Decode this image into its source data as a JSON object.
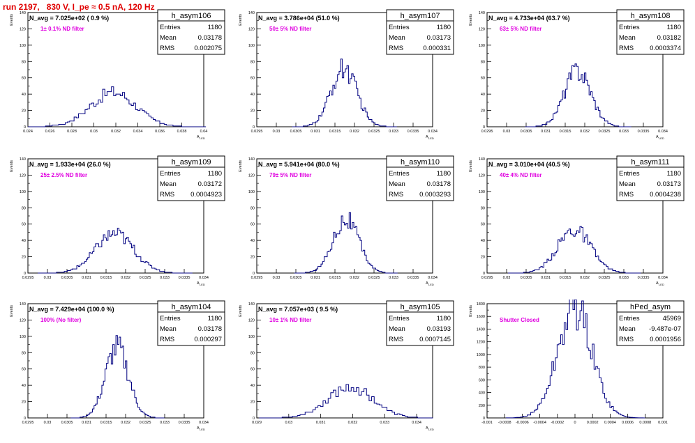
{
  "page_title": "run 2197,   830 V, I_pe ≈ 0.5 nA, 120 Hz",
  "colors": {
    "histogram_line": "#000080",
    "filter_text": "#e000e0",
    "title_text": "#e00000",
    "frame": "#000000"
  },
  "chart_data": [
    {
      "type": "histogram",
      "hist_name": "h_asym106",
      "n_avg": "N_avg = 7.025e+02 ( 0.9 %)",
      "filter_label": "1± 0.1% ND filter",
      "stats": {
        "entries_label": "Entries",
        "entries": "1180",
        "mean_label": "Mean",
        "mean": "0.03178",
        "rms_label": "RMS",
        "rms": "0.002075"
      },
      "ylabel": "Events",
      "xlabel": "A",
      "xlabel_sub": "LED",
      "xlim": [
        0.024,
        0.04
      ],
      "ylim": [
        0,
        140
      ],
      "xticks": [
        "0.024",
        "0.026",
        "0.028",
        "0.03",
        "0.032",
        "0.034",
        "0.036",
        "0.038",
        "0.04"
      ],
      "yticks": [
        "0",
        "20",
        "40",
        "60",
        "80",
        "100",
        "120",
        "140"
      ],
      "peak": 42,
      "bin_width": 0.0002
    },
    {
      "type": "histogram",
      "hist_name": "h_asym107",
      "n_avg": "N_avg = 3.786e+04 (51.0 %)",
      "filter_label": "50± 5% ND filter",
      "stats": {
        "entries_label": "Entries",
        "entries": "1180",
        "mean_label": "Mean",
        "mean": "0.03173",
        "rms_label": "RMS",
        "rms": "0.000331"
      },
      "ylabel": "Events",
      "xlabel": "A",
      "xlabel_sub": "LED",
      "xlim": [
        0.0295,
        0.034
      ],
      "ylim": [
        0,
        140
      ],
      "xticks": [
        "0.0295",
        "0.03",
        "0.0305",
        "0.031",
        "0.0315",
        "0.032",
        "0.0325",
        "0.033",
        "0.0335",
        "0.034"
      ],
      "yticks": [
        "0",
        "20",
        "40",
        "60",
        "80",
        "100",
        "120",
        "140"
      ],
      "peak": 71,
      "bin_width": 4e-05
    },
    {
      "type": "histogram",
      "hist_name": "h_asym108",
      "n_avg": "N_avg = 4.733e+04 (63.7 %)",
      "filter_label": "63± 5% ND filter",
      "stats": {
        "entries_label": "Entries",
        "entries": "1180",
        "mean_label": "Mean",
        "mean": "0.03182",
        "rms_label": "RMS",
        "rms": "0.0003374"
      },
      "ylabel": "Events",
      "xlabel": "A",
      "xlabel_sub": "LED",
      "xlim": [
        0.0295,
        0.034
      ],
      "ylim": [
        0,
        140
      ],
      "xticks": [
        "0.0295",
        "0.03",
        "0.0305",
        "0.031",
        "0.0315",
        "0.032",
        "0.0325",
        "0.033",
        "0.0335",
        "0.034"
      ],
      "yticks": [
        "0",
        "20",
        "40",
        "60",
        "80",
        "100",
        "120",
        "140"
      ],
      "peak": 69,
      "bin_width": 4e-05
    },
    {
      "type": "histogram",
      "hist_name": "h_asym109",
      "n_avg": "N_avg = 1.933e+04 (26.0 %)",
      "filter_label": "25± 2.5% ND filter",
      "stats": {
        "entries_label": "Entries",
        "entries": "1180",
        "mean_label": "Mean",
        "mean": "0.03172",
        "rms_label": "RMS",
        "rms": "0.0004923"
      },
      "ylabel": "Events",
      "xlabel": "A",
      "xlabel_sub": "LED",
      "xlim": [
        0.0295,
        0.034
      ],
      "ylim": [
        0,
        140
      ],
      "xticks": [
        "0.0295",
        "0.03",
        "0.0305",
        "0.031",
        "0.0315",
        "0.032",
        "0.0325",
        "0.033",
        "0.0335",
        "0.034"
      ],
      "yticks": [
        "0",
        "20",
        "40",
        "60",
        "80",
        "100",
        "120",
        "140"
      ],
      "peak": 48,
      "bin_width": 4e-05
    },
    {
      "type": "histogram",
      "hist_name": "h_asym110",
      "n_avg": "N_avg = 5.941e+04 (80.0 %)",
      "filter_label": "79± 5% ND filter",
      "stats": {
        "entries_label": "Entries",
        "entries": "1180",
        "mean_label": "Mean",
        "mean": "0.03178",
        "rms_label": "RMS",
        "rms": "0.0003293"
      },
      "ylabel": "Events",
      "xlabel": "A",
      "xlabel_sub": "LED",
      "xlim": [
        0.0295,
        0.034
      ],
      "ylim": [
        0,
        140
      ],
      "xticks": [
        "0.0295",
        "0.03",
        "0.0305",
        "0.031",
        "0.0315",
        "0.032",
        "0.0325",
        "0.033",
        "0.0335",
        "0.034"
      ],
      "yticks": [
        "0",
        "20",
        "40",
        "60",
        "80",
        "100",
        "120",
        "140"
      ],
      "peak": 66,
      "bin_width": 4e-05
    },
    {
      "type": "histogram",
      "hist_name": "h_asym111",
      "n_avg": "N_avg = 3.010e+04 (40.5 %)",
      "filter_label": "40± 4% ND filter",
      "stats": {
        "entries_label": "Entries",
        "entries": "1180",
        "mean_label": "Mean",
        "mean": "0.03173",
        "rms_label": "RMS",
        "rms": "0.0004238"
      },
      "ylabel": "Events",
      "xlabel": "A",
      "xlabel_sub": "LED",
      "xlim": [
        0.0295,
        0.034
      ],
      "ylim": [
        0,
        140
      ],
      "xticks": [
        "0.0295",
        "0.03",
        "0.0305",
        "0.031",
        "0.0315",
        "0.032",
        "0.0325",
        "0.033",
        "0.0335",
        "0.034"
      ],
      "yticks": [
        "0",
        "20",
        "40",
        "60",
        "80",
        "100",
        "120",
        "140"
      ],
      "peak": 53,
      "bin_width": 4e-05
    },
    {
      "type": "histogram",
      "hist_name": "h_asym104",
      "n_avg": "N_avg = 7.429e+04 (100.0 %)",
      "filter_label": "100% (No filter)",
      "stats": {
        "entries_label": "Entries",
        "entries": "1180",
        "mean_label": "Mean",
        "mean": "0.03178",
        "rms_label": "RMS",
        "rms": "0.000297"
      },
      "ylabel": "Events",
      "xlabel": "A",
      "xlabel_sub": "LED",
      "xlim": [
        0.0295,
        0.034
      ],
      "ylim": [
        0,
        140
      ],
      "xticks": [
        "0.0295",
        "0.03",
        "0.0305",
        "0.031",
        "0.0315",
        "0.032",
        "0.0325",
        "0.033",
        "0.0335",
        "0.034"
      ],
      "yticks": [
        "0",
        "20",
        "40",
        "60",
        "80",
        "100",
        "120",
        "140"
      ],
      "peak": 86,
      "bin_width": 4e-05
    },
    {
      "type": "histogram",
      "hist_name": "h_asym105",
      "n_avg": "N_avg = 7.057e+03 ( 9.5 %)",
      "filter_label": "10± 1% ND filter",
      "stats": {
        "entries_label": "Entries",
        "entries": "1180",
        "mean_label": "Mean",
        "mean": "0.03193",
        "rms_label": "RMS",
        "rms": "0.0007145"
      },
      "ylabel": "Events",
      "xlabel": "A",
      "xlabel_sub": "LED",
      "xlim": [
        0.029,
        0.0345
      ],
      "ylim": [
        0,
        140
      ],
      "xticks": [
        "0.029",
        "0.03",
        "0.031",
        "0.032",
        "0.033",
        "0.034"
      ],
      "yticks": [
        "0",
        "20",
        "40",
        "60",
        "80",
        "100",
        "120",
        "140"
      ],
      "peak": 38,
      "bin_width": 8e-05
    },
    {
      "type": "histogram",
      "hist_name": "hPed_asym",
      "n_avg": "",
      "filter_label": "Shutter Closed",
      "stats": {
        "entries_label": "Entries",
        "entries": "45969",
        "mean_label": "Mean",
        "mean": "-9.487e-07",
        "rms_label": "RMS",
        "rms": "0.0001956"
      },
      "ylabel": "Events",
      "xlabel": "",
      "xlabel_sub": "",
      "xlim": [
        -0.001,
        0.001
      ],
      "ylim": [
        0,
        1800
      ],
      "xticks": [
        "-0.001",
        "-0.0008",
        "-0.0006",
        "-0.0004",
        "-0.0002",
        "0",
        "0.0002",
        "0.0004",
        "0.0006",
        "0.0008",
        "0.001"
      ],
      "yticks": [
        "0",
        "200",
        "400",
        "600",
        "800",
        "1000",
        "1200",
        "1400",
        "1600",
        "1800"
      ],
      "peak": 1730,
      "bin_width": 2e-05
    }
  ]
}
